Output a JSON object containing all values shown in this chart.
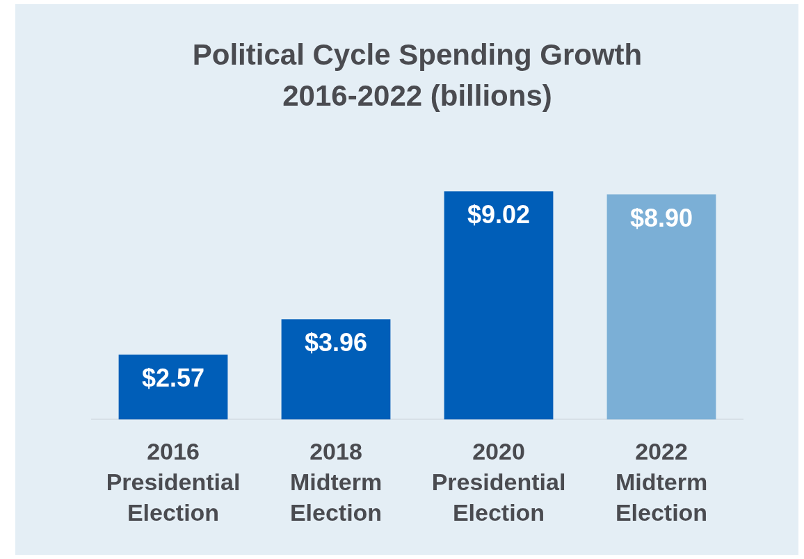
{
  "chart_data": {
    "type": "bar",
    "title": [
      "Political Cycle Spending Growth",
      "2016-2022 (billions)"
    ],
    "categories": [
      "2016\nPresidential\nElection",
      "2018\nMidterm\nElection",
      "2020\nPresidential\nElection",
      "2022\nMidterm\nElection"
    ],
    "values": [
      2.57,
      3.96,
      9.02,
      8.9
    ],
    "colors": [
      "#005eb8",
      "#005eb8",
      "#005eb8",
      "#7bafd6"
    ],
    "value_labels": [
      "$2.57",
      "$3.96",
      "$9.02",
      "$8.90"
    ],
    "legend": false,
    "grid": false
  }
}
